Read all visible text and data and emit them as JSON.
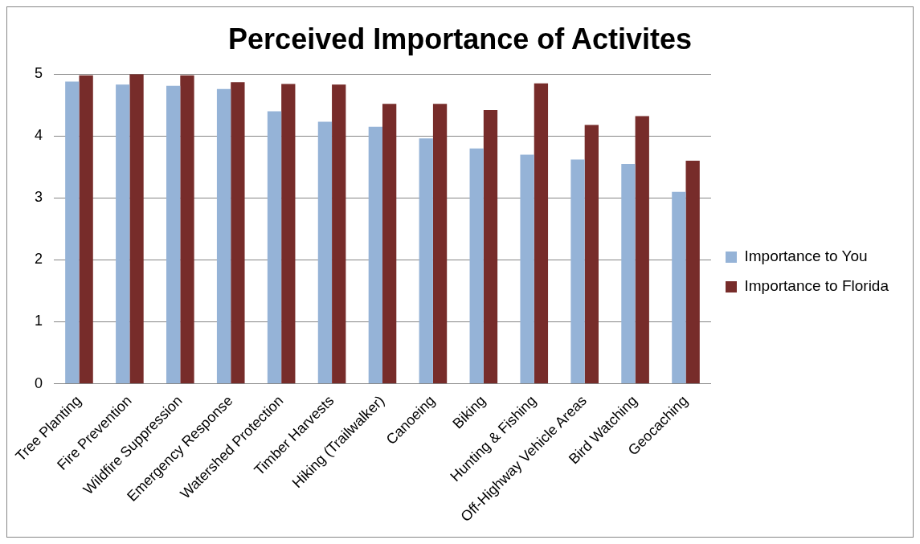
{
  "chart_data": {
    "type": "bar",
    "title": "Perceived Importance of Activites",
    "categories": [
      "Tree Planting",
      "Fire Prevention",
      "Wildfire Suppression",
      "Emergency Response",
      "Watershed Protection",
      "Timber Harvests",
      "Hiking (Trailwalker)",
      "Canoeing",
      "Biking",
      "Hunting & Fishing",
      "Off-Highway Vehicle Areas",
      "Bird Watching",
      "Geocaching"
    ],
    "series": [
      {
        "name": "Importance to You",
        "color": "#95b3d7",
        "values": [
          4.88,
          4.83,
          4.81,
          4.76,
          4.4,
          4.23,
          4.15,
          3.96,
          3.8,
          3.7,
          3.62,
          3.55,
          3.1
        ]
      },
      {
        "name": "Importance to Florida",
        "color": "#772c2a",
        "values": [
          4.98,
          5.0,
          4.98,
          4.87,
          4.84,
          4.83,
          4.52,
          4.52,
          4.42,
          4.85,
          4.18,
          4.32,
          3.6
        ]
      }
    ],
    "ylim": [
      0,
      5
    ],
    "yticks": [
      0,
      1,
      2,
      3,
      4,
      5
    ],
    "grid": "y",
    "legend": "right"
  }
}
